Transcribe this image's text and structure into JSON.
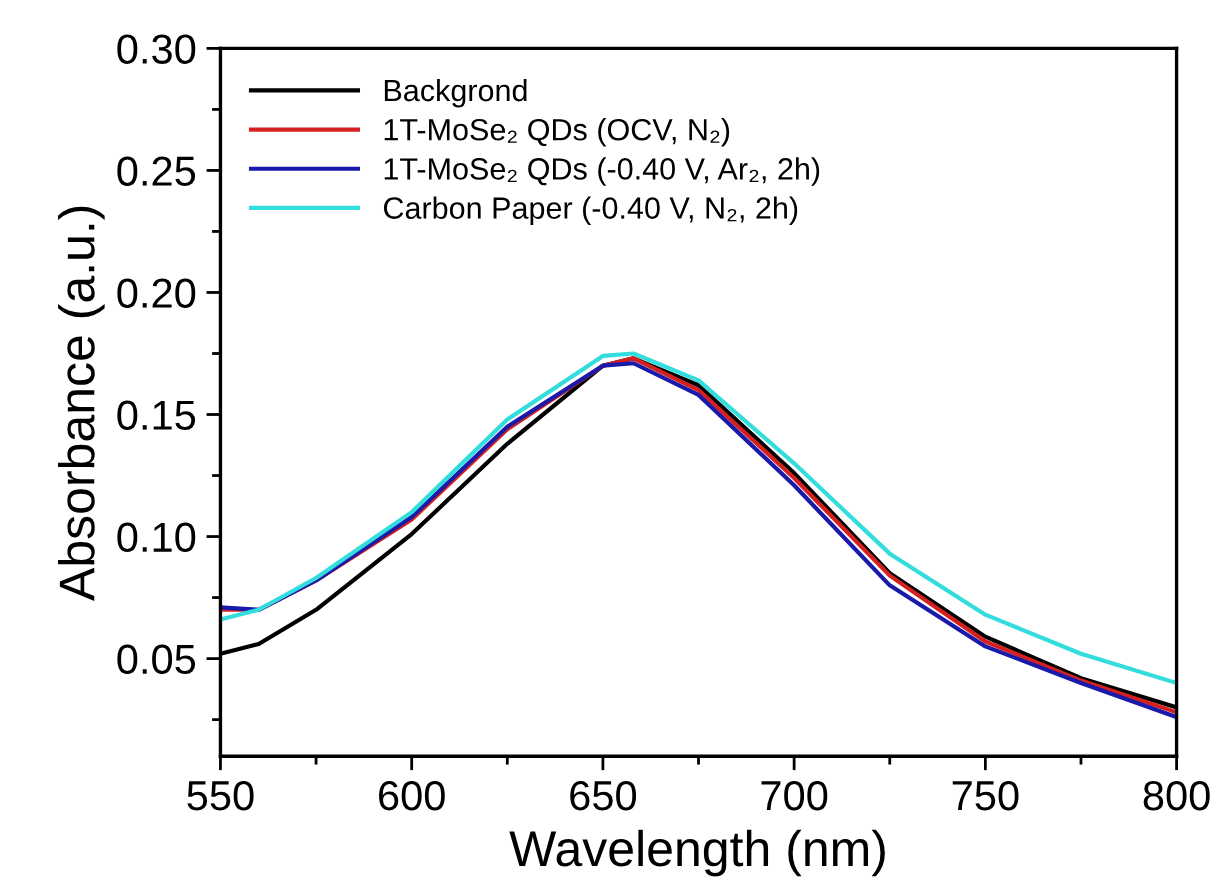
{
  "chart_data": {
    "type": "line",
    "xlabel": "Wavelength (nm)",
    "ylabel": "Absorbance (a.u.)",
    "x": [
      550,
      560,
      575,
      600,
      625,
      650,
      658,
      675,
      700,
      725,
      750,
      775,
      800
    ],
    "series": [
      {
        "name": "Backgrond",
        "color": "#000000",
        "values": [
          0.052,
          0.056,
          0.07,
          0.101,
          0.138,
          0.17,
          0.173,
          0.162,
          0.126,
          0.085,
          0.059,
          0.042,
          0.03
        ]
      },
      {
        "name": "1T-MoSe₂ QDs (OCV, N₂)",
        "color": "#d62020",
        "values": [
          0.07,
          0.07,
          0.082,
          0.107,
          0.144,
          0.17,
          0.173,
          0.16,
          0.124,
          0.084,
          0.057,
          0.041,
          0.028
        ]
      },
      {
        "name": "1T-MoSe₂ QDs (-0.40 V, Ar₂, 2h)",
        "color": "#1a1aaa",
        "values": [
          0.071,
          0.07,
          0.082,
          0.108,
          0.145,
          0.17,
          0.171,
          0.158,
          0.121,
          0.08,
          0.055,
          0.04,
          0.026
        ]
      },
      {
        "name": "Carbon Paper (-0.40 V, N₂, 2h)",
        "color": "#33dddd",
        "values": [
          0.066,
          0.07,
          0.083,
          0.11,
          0.148,
          0.174,
          0.175,
          0.164,
          0.13,
          0.093,
          0.068,
          0.052,
          0.04
        ]
      }
    ],
    "xlim": [
      550,
      800
    ],
    "xticks": [
      550,
      {
        "value": 575,
        "label": null
      },
      600,
      {
        "value": 625,
        "label": null
      },
      650,
      {
        "value": 675,
        "label": null
      },
      700,
      {
        "value": 725,
        "label": null
      },
      750,
      {
        "value": 775,
        "label": null
      },
      800
    ],
    "ylim": [
      0.01,
      0.3
    ],
    "yticks": [
      {
        "value": 0.025,
        "label": null
      },
      0.05,
      {
        "value": 0.075,
        "label": null
      },
      {
        "value": 0.1,
        "label": "0.10"
      },
      {
        "value": 0.125,
        "label": null
      },
      0.15,
      {
        "value": 0.175,
        "label": null
      },
      {
        "value": 0.2,
        "label": "0.20"
      },
      {
        "value": 0.225,
        "label": null
      },
      0.25,
      {
        "value": 0.275,
        "label": null
      },
      {
        "value": 0.3,
        "label": "0.30"
      }
    ],
    "grid": false,
    "legend": "top left",
    "marker": "none",
    "line_style": "solid"
  }
}
